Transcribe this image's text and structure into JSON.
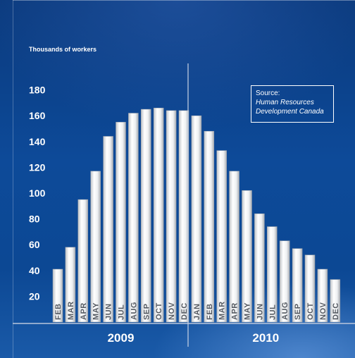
{
  "chart_data": {
    "type": "bar",
    "ylabel": "Thousands of workers",
    "ylim": [
      0,
      180
    ],
    "yticks": [
      20,
      40,
      60,
      80,
      100,
      120,
      140,
      160,
      180
    ],
    "categories": [
      "FEB",
      "MAR",
      "APR",
      "MAY",
      "JUN",
      "JUL",
      "AUG",
      "SEP",
      "OCT",
      "NOV",
      "DEC",
      "JAN",
      "FEB",
      "MAR",
      "APR",
      "MAY",
      "JUN",
      "JUL",
      "AUG",
      "SEP",
      "OCT",
      "NOV",
      "DEC"
    ],
    "values": [
      41,
      58,
      95,
      117,
      144,
      155,
      162,
      165,
      166,
      164,
      164,
      160,
      148,
      133,
      117,
      102,
      84,
      74,
      63,
      57,
      52,
      41,
      33
    ],
    "groups": [
      {
        "label": "2009",
        "start": 0,
        "end": 10
      },
      {
        "label": "2010",
        "start": 11,
        "end": 22
      }
    ],
    "grid": false,
    "legend": "none",
    "bar_color": "#f2f2f2"
  },
  "source": {
    "title": "Source:",
    "body": "Human Resources Development Canada"
  }
}
